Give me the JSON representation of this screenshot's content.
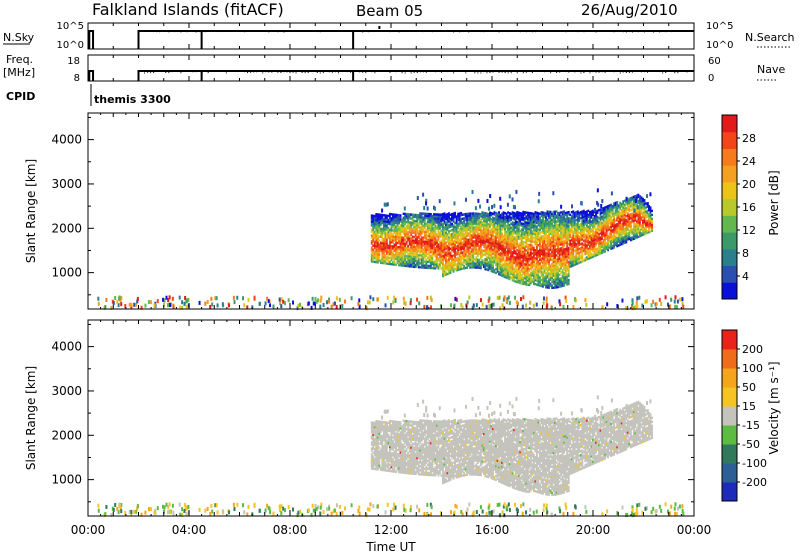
{
  "header": {
    "title": "Falkland Islands (fitACF)",
    "beam": "Beam 05",
    "date": "26/Aug/2010",
    "cpid_label": "CPID",
    "cpid_value": "themis 3300"
  },
  "status_panels": {
    "nsky": {
      "label": "N.Sky",
      "ticks": [
        "10^5",
        "10^0"
      ]
    },
    "nsearch": {
      "label": "N.Search",
      "ticks": [
        "10^5",
        "10^0"
      ]
    },
    "freq": {
      "label_line1": "Freq.",
      "label_line2": "[MHz]",
      "ticks": [
        "18",
        "8"
      ]
    },
    "nave": {
      "label": "Nave",
      "ticks": [
        "60",
        "0"
      ]
    }
  },
  "colorbars": {
    "power": {
      "label": "Power [dB]",
      "ticks": [
        "28",
        "24",
        "20",
        "16",
        "12",
        "8",
        "4"
      ],
      "colors": [
        "#0b10d8",
        "#2a4fb0",
        "#2a7f8c",
        "#3c9a6a",
        "#62b84f",
        "#b9c92c",
        "#ecc419",
        "#f4a020",
        "#f57b1c",
        "#f2461a",
        "#e11b1b"
      ]
    },
    "velocity": {
      "label": "Velocity [m s⁻¹]",
      "ticks": [
        "200",
        "100",
        "50",
        "15",
        "-15",
        "-50",
        "-100",
        "-200"
      ],
      "colors": [
        "#1c2bb8",
        "#2c5f95",
        "#307a5b",
        "#5cbc42",
        "#c4c4bc",
        "#f5c422",
        "#f4a51c",
        "#f06c1a",
        "#e8241a"
      ]
    }
  },
  "chart_data": [
    {
      "type": "heatmap",
      "title": "Power",
      "xlabel": "",
      "ylabel": "Slant Range [km]",
      "x_ticks": [
        "00:00",
        "04:00",
        "08:00",
        "12:00",
        "16:00",
        "20:00",
        "00:00"
      ],
      "y_ticks": [
        "1000",
        "2000",
        "3000",
        "4000"
      ],
      "xlim_hours": [
        0,
        24
      ],
      "ylim_km": [
        180,
        4600
      ],
      "scatter_band": {
        "start_hour": 11.2,
        "end_hour": 22.3,
        "top_km": [
          2300,
          2400
        ],
        "bottom_km": [
          1200,
          700
        ]
      }
    },
    {
      "type": "heatmap",
      "title": "Velocity",
      "xlabel": "Time UT",
      "ylabel": "Slant Range [km]",
      "x_ticks": [
        "00:00",
        "04:00",
        "08:00",
        "12:00",
        "16:00",
        "20:00",
        "00:00"
      ],
      "y_ticks": [
        "1000",
        "2000",
        "3000",
        "4000"
      ],
      "xlim_hours": [
        0,
        24
      ],
      "ylim_km": [
        180,
        4600
      ],
      "dominant_value": "ground scatter (-15 to 15)"
    }
  ]
}
